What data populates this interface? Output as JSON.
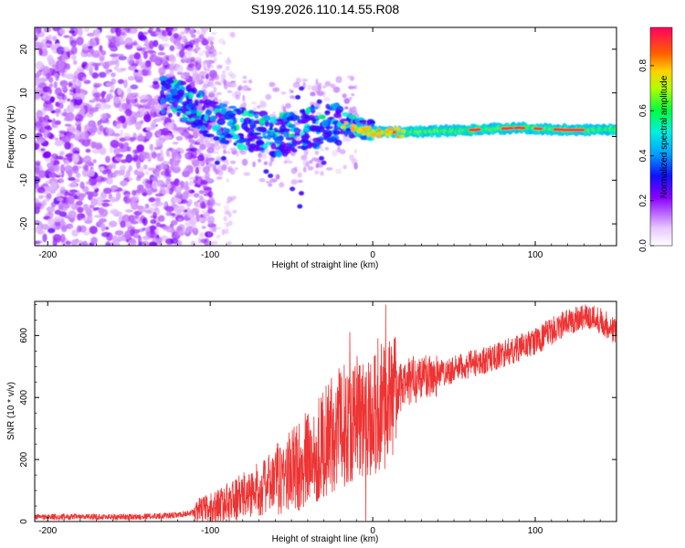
{
  "title": "S199.2026.110.14.55.R08",
  "chart_data": [
    {
      "type": "heatmap",
      "name": "spectrogram",
      "xlabel": "Height of straight line (km)",
      "ylabel": "Frequency (Hz)",
      "xlim": [
        -208,
        150
      ],
      "ylim": [
        -25,
        25
      ],
      "xticks": [
        -200,
        -100,
        0,
        100
      ],
      "yticks": [
        -20,
        -10,
        0,
        10,
        20
      ],
      "x_tick_labels": [
        "-200",
        "-100",
        "0",
        "100"
      ],
      "y_tick_labels": [
        "-20",
        "-10",
        "0",
        "10",
        "20"
      ],
      "colorbar": {
        "label": "Normalized spectral amplitude",
        "range": [
          0.0,
          0.97
        ],
        "ticks": [
          0.0,
          0.2,
          0.4,
          0.6,
          0.8
        ],
        "tick_labels": [
          "0.0",
          "0.2",
          "0.4",
          "0.6",
          "0.8"
        ]
      },
      "ridge": {
        "description_points": [
          [
            -120,
            9
          ],
          [
            -100,
            4
          ],
          [
            -80,
            2
          ],
          [
            -60,
            0
          ],
          [
            -40,
            2
          ],
          [
            -20,
            3
          ],
          [
            0,
            1
          ],
          [
            20,
            1
          ],
          [
            60,
            1.5
          ],
          [
            90,
            2
          ],
          [
            120,
            1.5
          ],
          [
            150,
            1.5
          ]
        ]
      }
    },
    {
      "type": "line",
      "name": "snr",
      "xlabel": "Height of straight line (km)",
      "ylabel": "SNR (10 * v/v)",
      "xlim": [
        -208,
        150
      ],
      "ylim": [
        0,
        710
      ],
      "xticks": [
        -200,
        -100,
        0,
        100
      ],
      "yticks": [
        0,
        200,
        400,
        600
      ],
      "x_tick_labels": [
        "-200",
        "-100",
        "0",
        "100"
      ],
      "y_tick_labels": [
        "0",
        "200",
        "400",
        "600"
      ],
      "color": "#ee3333",
      "envelope": {
        "x": [
          -208,
          -150,
          -120,
          -100,
          -80,
          -60,
          -40,
          -25,
          -15,
          -5,
          5,
          15,
          25,
          50,
          75,
          100,
          115,
          130,
          140,
          150
        ],
        "y": [
          15,
          15,
          20,
          40,
          80,
          130,
          200,
          280,
          320,
          330,
          350,
          420,
          460,
          490,
          530,
          580,
          630,
          665,
          650,
          610
        ]
      }
    }
  ]
}
